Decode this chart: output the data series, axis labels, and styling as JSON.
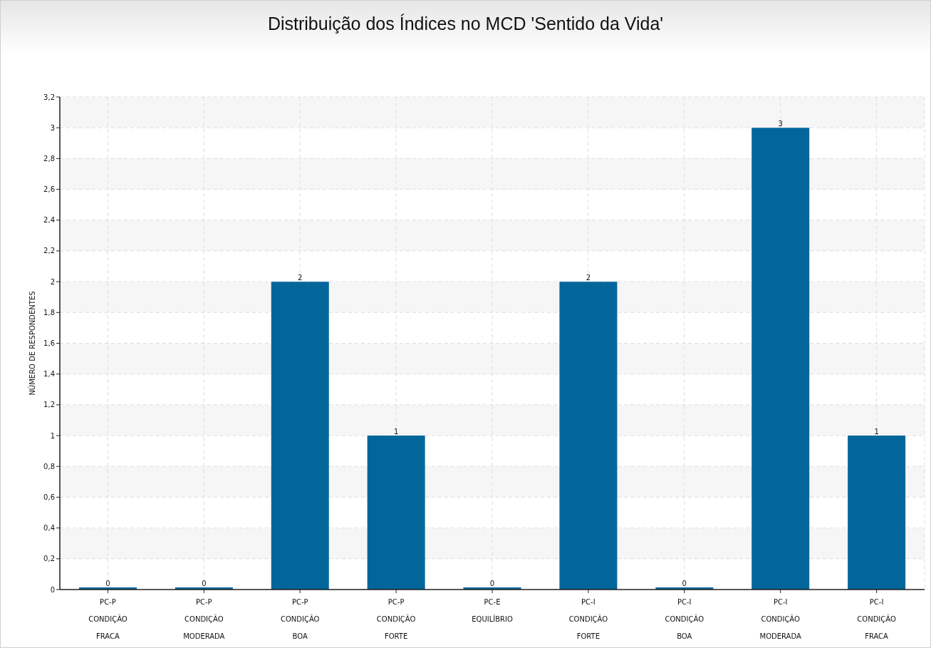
{
  "chart_data": {
    "type": "bar",
    "title": "Distribuição dos Índices no MCD 'Sentido da Vida'",
    "ylabel": "NÚMERO DE RESPONDENTES",
    "categories": [
      "PC-P CONDIÇÃO FRACA",
      "PC-P CONDIÇÃO MODERADA",
      "PC-P CONDIÇÃO BOA",
      "PC-P CONDIÇÃO FORTE",
      "PC-E EQUILÍBRIO",
      "PC-I CONDIÇÃO FORTE",
      "PC-I CONDIÇÃO BOA",
      "PC-I CONDIÇÃO MODERADA",
      "PC-I CONDIÇÃO FRACA"
    ],
    "values": [
      0,
      0,
      2,
      1,
      0,
      2,
      0,
      3,
      1
    ],
    "color": "#03669b",
    "ylim": [
      0,
      3.2
    ],
    "yticks": [
      0,
      {
        "value": 0.2,
        "label": "0,2"
      },
      {
        "value": 0.4,
        "label": "0,4"
      },
      {
        "value": 0.6,
        "label": "0,6"
      },
      {
        "value": 0.8,
        "label": "0,8"
      },
      1,
      {
        "value": 1.2,
        "label": "1,2"
      },
      {
        "value": 1.4,
        "label": "1,4"
      },
      {
        "value": 1.6,
        "label": "1,6"
      },
      {
        "value": 1.8,
        "label": "1,8"
      },
      2,
      {
        "value": 2.2,
        "label": "2,2"
      },
      {
        "value": 2.4,
        "label": "2,4"
      },
      {
        "value": 2.6,
        "label": "2,6"
      },
      {
        "value": 2.8,
        "label": "2,8"
      },
      3,
      {
        "value": 3.2,
        "label": "3,2"
      }
    ],
    "grid": true,
    "data_labels": true
  }
}
